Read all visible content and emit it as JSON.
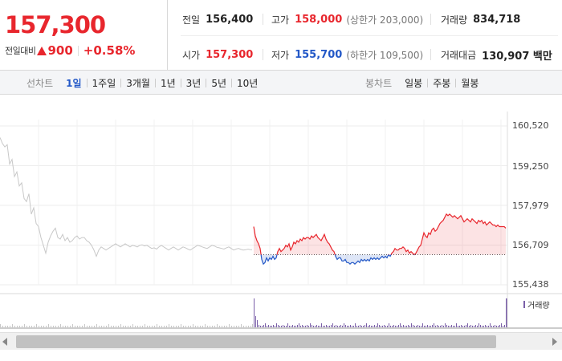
{
  "quote": {
    "price": "157,300",
    "change_label": "전일대비",
    "change_icon": "up-triangle-icon",
    "change_value": "900",
    "change_pct": "+0.58%",
    "prev_close": {
      "label": "전일",
      "value": "156,400"
    },
    "high": {
      "label": "고가",
      "value": "158,000",
      "sub": "(상한가 203,000)"
    },
    "volume": {
      "label": "거래량",
      "value": "834,718"
    },
    "open": {
      "label": "시가",
      "value": "157,300"
    },
    "low": {
      "label": "저가",
      "value": "155,700",
      "sub": "(하한가 109,500)"
    },
    "amount": {
      "label": "거래대금",
      "value": "130,907 백만"
    }
  },
  "toolbar": {
    "line_label": "선차트",
    "line_items": [
      "1일",
      "1주일",
      "3개월",
      "1년",
      "3년",
      "5년",
      "10년"
    ],
    "line_active": "1일",
    "candle_label": "봉차트",
    "candle_items": [
      "일봉",
      "주봉",
      "월봉"
    ]
  },
  "colors": {
    "up": "#e8262d",
    "down": "#2358c7",
    "prev_session": "#c8c8c8",
    "volume": "#7a5fa8"
  },
  "chart_data": {
    "type": "line",
    "title": "",
    "y_ticks": [
      "160,520",
      "159,250",
      "157,979",
      "156,709",
      "155,438"
    ],
    "ylim": [
      155438,
      160520
    ],
    "baseline": 156400,
    "grid": true,
    "prev_session": [
      [
        0,
        160150
      ],
      [
        3,
        159960
      ],
      [
        6,
        159850
      ],
      [
        9,
        159920
      ],
      [
        12,
        159300
      ],
      [
        15,
        159450
      ],
      [
        18,
        158900
      ],
      [
        21,
        159050
      ],
      [
        24,
        158600
      ],
      [
        27,
        158700
      ],
      [
        30,
        158200
      ],
      [
        33,
        158100
      ],
      [
        36,
        158350
      ],
      [
        39,
        157700
      ],
      [
        42,
        157900
      ],
      [
        45,
        157400
      ],
      [
        48,
        157300
      ],
      [
        51,
        156950
      ],
      [
        54,
        156700
      ],
      [
        57,
        156450
      ],
      [
        60,
        156800
      ],
      [
        63,
        157000
      ],
      [
        66,
        157150
      ],
      [
        69,
        157250
      ],
      [
        72,
        156950
      ],
      [
        75,
        156900
      ],
      [
        78,
        157050
      ],
      [
        81,
        156850
      ],
      [
        84,
        156950
      ],
      [
        87,
        156800
      ],
      [
        90,
        156850
      ],
      [
        93,
        156950
      ],
      [
        96,
        157000
      ],
      [
        99,
        156900
      ],
      [
        102,
        156950
      ],
      [
        105,
        156950
      ],
      [
        108,
        156850
      ],
      [
        111,
        156800
      ],
      [
        114,
        156700
      ],
      [
        117,
        156550
      ],
      [
        120,
        156350
      ],
      [
        123,
        156550
      ],
      [
        126,
        156650
      ],
      [
        129,
        156600
      ],
      [
        132,
        156550
      ],
      [
        135,
        156600
      ],
      [
        138,
        156650
      ],
      [
        141,
        156700
      ],
      [
        144,
        156750
      ],
      [
        147,
        156700
      ],
      [
        150,
        156650
      ],
      [
        153,
        156700
      ],
      [
        156,
        156750
      ],
      [
        159,
        156700
      ],
      [
        162,
        156650
      ],
      [
        165,
        156700
      ],
      [
        168,
        156680
      ],
      [
        171,
        156650
      ],
      [
        174,
        156700
      ],
      [
        177,
        156720
      ],
      [
        180,
        156680
      ],
      [
        183,
        156700
      ],
      [
        186,
        156650
      ],
      [
        189,
        156600
      ],
      [
        192,
        156620
      ],
      [
        195,
        156580
      ],
      [
        198,
        156650
      ],
      [
        201,
        156700
      ],
      [
        204,
        156650
      ],
      [
        207,
        156600
      ],
      [
        210,
        156550
      ],
      [
        213,
        156600
      ],
      [
        216,
        156650
      ],
      [
        219,
        156600
      ],
      [
        222,
        156550
      ],
      [
        225,
        156600
      ],
      [
        228,
        156650
      ],
      [
        231,
        156620
      ],
      [
        234,
        156580
      ],
      [
        237,
        156550
      ],
      [
        240,
        156600
      ],
      [
        243,
        156650
      ],
      [
        246,
        156700
      ],
      [
        249,
        156680
      ],
      [
        252,
        156650
      ],
      [
        255,
        156620
      ],
      [
        258,
        156600
      ],
      [
        261,
        156650
      ],
      [
        264,
        156700
      ],
      [
        267,
        156680
      ],
      [
        270,
        156640
      ],
      [
        273,
        156620
      ],
      [
        276,
        156600
      ],
      [
        279,
        156580
      ],
      [
        282,
        156620
      ],
      [
        285,
        156650
      ],
      [
        288,
        156600
      ],
      [
        291,
        156550
      ],
      [
        294,
        156580
      ],
      [
        297,
        156600
      ],
      [
        300,
        156570
      ],
      [
        303,
        156550
      ],
      [
        306,
        156560
      ],
      [
        309,
        156580
      ],
      [
        312,
        156560
      ],
      [
        314,
        156560
      ]
    ],
    "today": [
      [
        316,
        157300
      ],
      [
        318,
        157000
      ],
      [
        320,
        156850
      ],
      [
        322,
        156750
      ],
      [
        324,
        156600
      ],
      [
        326,
        156250
      ],
      [
        328,
        156100
      ],
      [
        330,
        156150
      ],
      [
        332,
        156300
      ],
      [
        334,
        156200
      ],
      [
        336,
        156300
      ],
      [
        338,
        156250
      ],
      [
        340,
        156350
      ],
      [
        342,
        156250
      ],
      [
        344,
        156300
      ],
      [
        346,
        156500
      ],
      [
        348,
        156600
      ],
      [
        350,
        156500
      ],
      [
        352,
        156550
      ],
      [
        354,
        156600
      ],
      [
        356,
        156700
      ],
      [
        358,
        156650
      ],
      [
        360,
        156750
      ],
      [
        362,
        156550
      ],
      [
        364,
        156650
      ],
      [
        366,
        156800
      ],
      [
        368,
        156750
      ],
      [
        370,
        156850
      ],
      [
        372,
        156800
      ],
      [
        374,
        156900
      ],
      [
        376,
        156850
      ],
      [
        378,
        156950
      ],
      [
        380,
        156900
      ],
      [
        382,
        156950
      ],
      [
        384,
        156950
      ],
      [
        386,
        156900
      ],
      [
        388,
        157000
      ],
      [
        390,
        156950
      ],
      [
        392,
        157000
      ],
      [
        394,
        157050
      ],
      [
        396,
        156950
      ],
      [
        398,
        156900
      ],
      [
        400,
        156850
      ],
      [
        402,
        156950
      ],
      [
        404,
        157050
      ],
      [
        406,
        156900
      ],
      [
        408,
        156800
      ],
      [
        410,
        156750
      ],
      [
        412,
        156650
      ],
      [
        414,
        156550
      ],
      [
        416,
        156500
      ],
      [
        418,
        156350
      ],
      [
        420,
        156250
      ],
      [
        422,
        156300
      ],
      [
        424,
        156300
      ],
      [
        426,
        156200
      ],
      [
        428,
        156200
      ],
      [
        430,
        156250
      ],
      [
        432,
        156150
      ],
      [
        434,
        156150
      ],
      [
        436,
        156100
      ],
      [
        438,
        156150
      ],
      [
        440,
        156150
      ],
      [
        442,
        156100
      ],
      [
        444,
        156150
      ],
      [
        446,
        156200
      ],
      [
        448,
        156150
      ],
      [
        450,
        156250
      ],
      [
        452,
        156200
      ],
      [
        454,
        156250
      ],
      [
        456,
        156200
      ],
      [
        458,
        156250
      ],
      [
        460,
        156200
      ],
      [
        462,
        156300
      ],
      [
        464,
        156250
      ],
      [
        466,
        156300
      ],
      [
        468,
        156250
      ],
      [
        470,
        156300
      ],
      [
        472,
        156250
      ],
      [
        474,
        156300
      ],
      [
        476,
        156350
      ],
      [
        478,
        156300
      ],
      [
        480,
        156350
      ],
      [
        482,
        156300
      ],
      [
        484,
        156400
      ],
      [
        486,
        156350
      ],
      [
        488,
        156450
      ],
      [
        490,
        156500
      ],
      [
        492,
        156600
      ],
      [
        494,
        156550
      ],
      [
        496,
        156550
      ],
      [
        498,
        156600
      ],
      [
        500,
        156600
      ],
      [
        502,
        156650
      ],
      [
        504,
        156600
      ],
      [
        506,
        156500
      ],
      [
        508,
        156550
      ],
      [
        510,
        156450
      ],
      [
        512,
        156500
      ],
      [
        514,
        156450
      ],
      [
        516,
        156400
      ],
      [
        518,
        156450
      ],
      [
        520,
        156550
      ],
      [
        522,
        156650
      ],
      [
        524,
        156700
      ],
      [
        526,
        156900
      ],
      [
        528,
        157100
      ],
      [
        530,
        157000
      ],
      [
        532,
        156950
      ],
      [
        534,
        157100
      ],
      [
        536,
        157050
      ],
      [
        538,
        157200
      ],
      [
        540,
        157250
      ],
      [
        542,
        157150
      ],
      [
        544,
        157200
      ],
      [
        546,
        157300
      ],
      [
        548,
        157400
      ],
      [
        550,
        157450
      ],
      [
        552,
        157500
      ],
      [
        554,
        157600
      ],
      [
        556,
        157700
      ],
      [
        558,
        157650
      ],
      [
        560,
        157700
      ],
      [
        562,
        157650
      ],
      [
        564,
        157600
      ],
      [
        566,
        157650
      ],
      [
        568,
        157600
      ],
      [
        570,
        157550
      ],
      [
        572,
        157600
      ],
      [
        574,
        157650
      ],
      [
        576,
        157550
      ],
      [
        578,
        157450
      ],
      [
        580,
        157500
      ],
      [
        582,
        157550
      ],
      [
        584,
        157500
      ],
      [
        586,
        157450
      ],
      [
        588,
        157550
      ],
      [
        590,
        157500
      ],
      [
        592,
        157450
      ],
      [
        594,
        157400
      ],
      [
        596,
        157500
      ],
      [
        598,
        157450
      ],
      [
        600,
        157500
      ],
      [
        602,
        157400
      ],
      [
        604,
        157450
      ],
      [
        606,
        157350
      ],
      [
        608,
        157400
      ],
      [
        610,
        157450
      ],
      [
        612,
        157400
      ],
      [
        614,
        157350
      ],
      [
        616,
        157350
      ],
      [
        618,
        157300
      ],
      [
        620,
        157350
      ],
      [
        622,
        157300
      ],
      [
        624,
        157300
      ],
      [
        626,
        157300
      ],
      [
        628,
        157300
      ],
      [
        630,
        157250
      ]
    ]
  },
  "volume_legend": "거래량"
}
